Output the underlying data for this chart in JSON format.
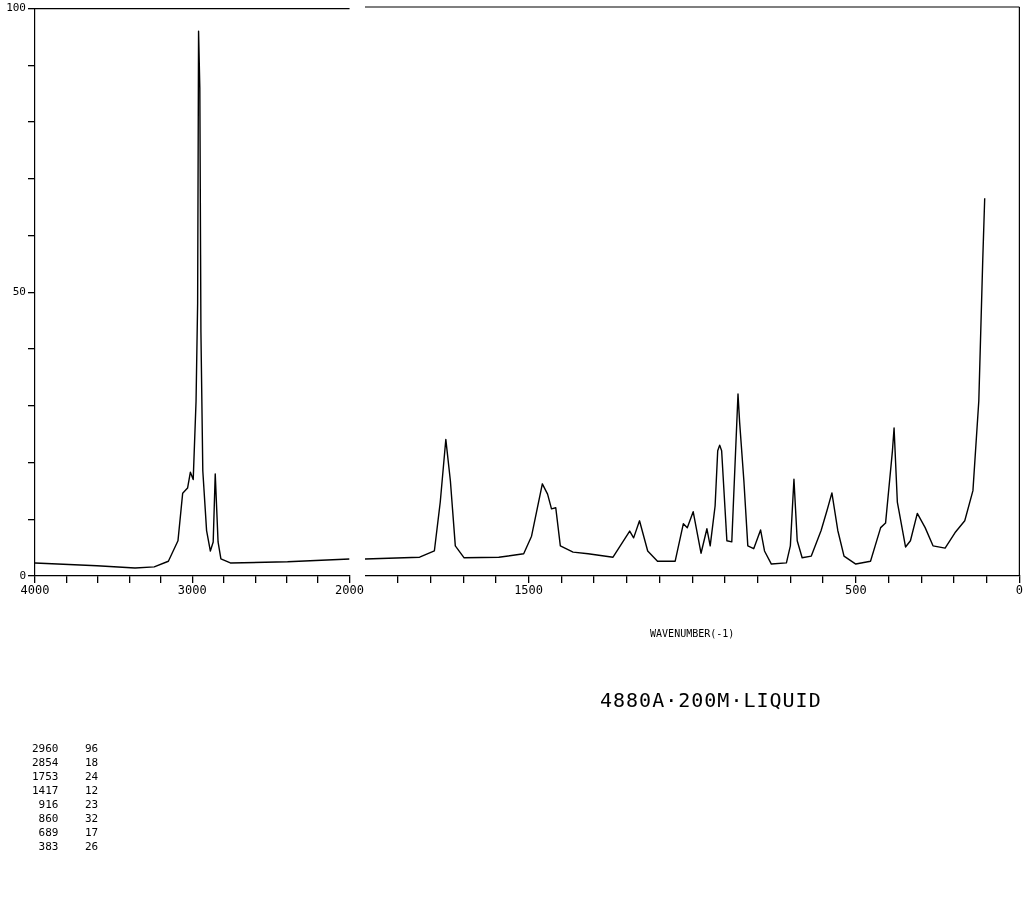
{
  "chart_data": [
    {
      "type": "line",
      "x": [
        4000,
        3606,
        3364,
        3242,
        3152,
        3091,
        3061,
        3030,
        3012,
        2994,
        2976,
        2966,
        2960,
        2952,
        2945,
        2933,
        2909,
        2885,
        2867,
        2854,
        2836,
        2818,
        2758,
        2394,
        2000
      ],
      "series": [
        {
          "color": "#000000",
          "values": [
            2.3,
            1.8,
            1.4,
            1.6,
            2.6,
            6.2,
            14.6,
            15.5,
            18.3,
            17,
            30.8,
            48,
            96,
            86,
            43,
            18.5,
            8,
            4.4,
            6,
            18,
            6,
            3,
            2.3,
            2.5,
            3
          ]
        }
      ],
      "xlim": [
        4000,
        2000
      ],
      "xticks": [
        4000,
        {
          "value": 3800,
          "label": null
        },
        {
          "value": 3600,
          "label": null
        },
        {
          "value": 3400,
          "label": null
        },
        {
          "value": 3200,
          "label": null
        },
        3000,
        {
          "value": 2800,
          "label": null
        },
        {
          "value": 2600,
          "label": null
        },
        {
          "value": 2400,
          "label": null
        },
        {
          "value": 2200,
          "label": null
        },
        2000
      ],
      "ylim": [
        0,
        100
      ],
      "yticks": [
        0,
        {
          "value": 10,
          "label": null
        },
        {
          "value": 20,
          "label": null
        },
        {
          "value": 30,
          "label": null
        },
        {
          "value": 40,
          "label": null
        },
        50,
        {
          "value": 60,
          "label": null
        },
        {
          "value": 70,
          "label": null
        },
        {
          "value": 80,
          "label": null
        },
        {
          "value": 90,
          "label": null
        },
        100
      ],
      "marker": "none"
    },
    {
      "type": "line",
      "subtitle": "4880A·200M·LIQUID",
      "xlabel": "WAVENUMBER(-1)",
      "x": [
        2000,
        1833,
        1788,
        1770,
        1753,
        1739,
        1724,
        1697,
        1591,
        1515,
        1491,
        1458,
        1442,
        1430,
        1417,
        1403,
        1364,
        1318,
        1242,
        1191,
        1179,
        1161,
        1136,
        1106,
        1052,
        1027,
        1015,
        997,
        973,
        955,
        945,
        930,
        922,
        916,
        910,
        894,
        879,
        860,
        855,
        842,
        830,
        812,
        791,
        779,
        758,
        712,
        700,
        689,
        679,
        664,
        636,
        606,
        588,
        573,
        555,
        536,
        500,
        455,
        424,
        409,
        388,
        383,
        373,
        348,
        333,
        312,
        288,
        264,
        227,
        197,
        167,
        142,
        124,
        112,
        106
      ],
      "series": [
        {
          "color": "#000000",
          "values": [
            3,
            3.3,
            4.4,
            13,
            24,
            16.7,
            5.3,
            3.2,
            3.3,
            3.9,
            7,
            16.2,
            14.4,
            11.8,
            12,
            5.3,
            4.2,
            3.9,
            3.3,
            7.9,
            6.7,
            9.7,
            4.4,
            2.6,
            2.6,
            9.2,
            8.5,
            11.3,
            4,
            8.3,
            5.3,
            12.3,
            22,
            23,
            22,
            6.2,
            6,
            32,
            27,
            16.7,
            5.3,
            4.8,
            8.1,
            4.4,
            2.1,
            2.3,
            5.3,
            17,
            6.2,
            3.2,
            3.5,
            8,
            11.5,
            14.6,
            8,
            3.5,
            2.1,
            2.6,
            8.5,
            9.3,
            22,
            26,
            13,
            5.1,
            6.2,
            11,
            8.5,
            5.3,
            4.9,
            7.6,
            9.7,
            15,
            30.8,
            55.5,
            66.4
          ]
        }
      ],
      "xlim": [
        2000,
        0
      ],
      "xticks": [
        {
          "value": 1900,
          "label": null
        },
        {
          "value": 1800,
          "label": null
        },
        {
          "value": 1700,
          "label": null
        },
        {
          "value": 1600,
          "label": null
        },
        1500,
        {
          "value": 1400,
          "label": null
        },
        {
          "value": 1300,
          "label": null
        },
        {
          "value": 1200,
          "label": null
        },
        {
          "value": 1100,
          "label": null
        },
        {
          "value": 1000,
          "label": null
        },
        {
          "value": 900,
          "label": null
        },
        {
          "value": 800,
          "label": null
        },
        {
          "value": 700,
          "label": null
        },
        {
          "value": 600,
          "label": null
        },
        500,
        {
          "value": 400,
          "label": null
        },
        {
          "value": 300,
          "label": null
        },
        {
          "value": 200,
          "label": null
        },
        {
          "value": 100,
          "label": null
        },
        0
      ],
      "ylim": [
        0,
        100
      ],
      "tick_labels": "x",
      "marker": "none",
      "annotations": [
        "2960    96",
        "2854    18",
        "1753    24",
        "1417    12",
        " 916    23",
        " 860    32",
        " 689    17",
        " 383    26"
      ]
    }
  ]
}
